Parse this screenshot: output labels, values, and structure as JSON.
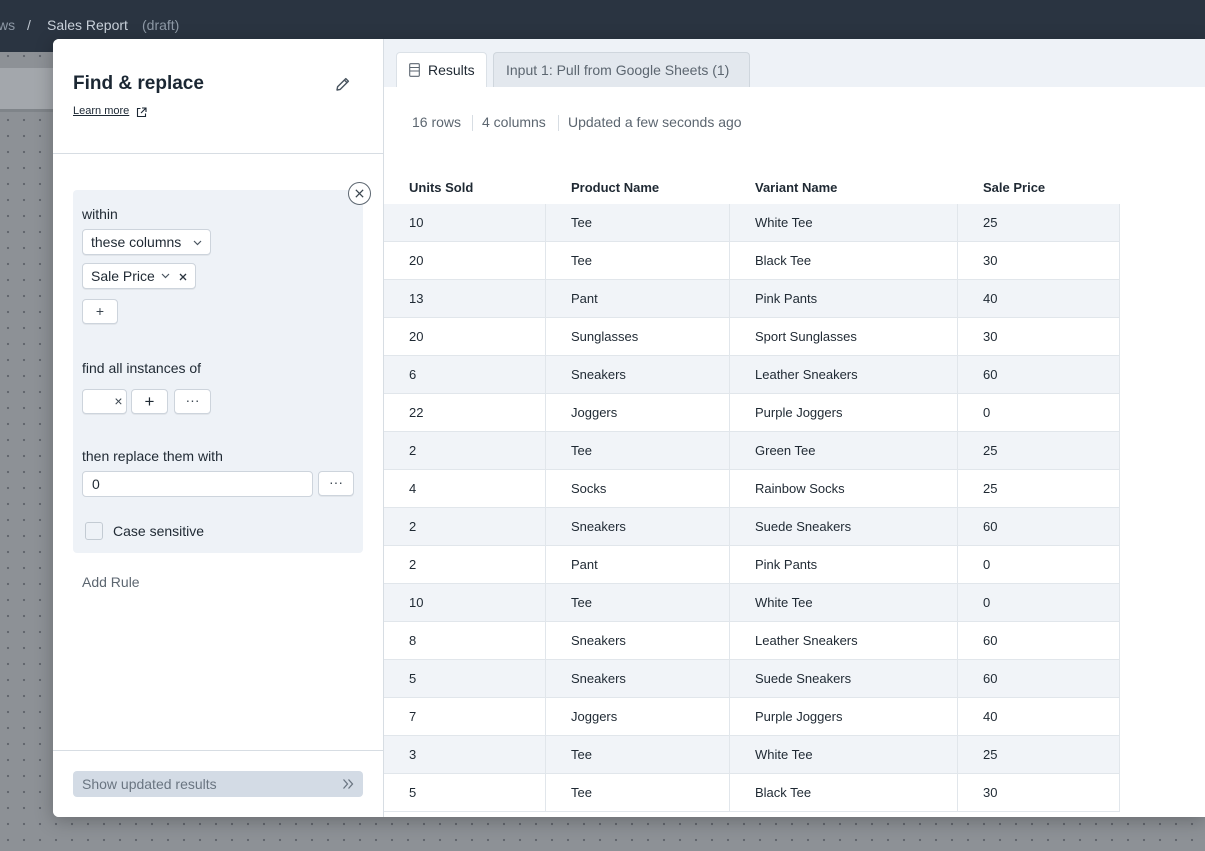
{
  "header": {
    "prev_crumb": "ws",
    "separator": "/",
    "title": "Sales Report",
    "status": "(draft)"
  },
  "panel": {
    "title": "Find & replace",
    "learn_more": "Learn more",
    "rule": {
      "within_label": "within",
      "scope_select": "these columns",
      "column_chip": "Sale Price",
      "add_column": "+",
      "find_label": "find all instances of",
      "find_clear": "×",
      "find_add": "+",
      "find_more": "···",
      "replace_label": "then replace them with",
      "replace_value": "0",
      "replace_more": "···",
      "case_sensitive_label": "Case sensitive",
      "case_sensitive_checked": false
    },
    "add_rule": "Add Rule",
    "show_results": "Show updated results"
  },
  "results": {
    "tabs": [
      "Results",
      "Input 1: Pull from Google Sheets (1)"
    ],
    "rows_count": "16 rows",
    "columns_count": "4 columns",
    "updated": "Updated a few seconds ago",
    "columns": [
      "Units Sold",
      "Product Name",
      "Variant Name",
      "Sale Price"
    ],
    "rows": [
      [
        "10",
        "Tee",
        "White Tee",
        "25"
      ],
      [
        "20",
        "Tee",
        "Black Tee",
        "30"
      ],
      [
        "13",
        "Pant",
        "Pink Pants",
        "40"
      ],
      [
        "20",
        "Sunglasses",
        "Sport Sunglasses",
        "30"
      ],
      [
        "6",
        "Sneakers",
        "Leather Sneakers",
        "60"
      ],
      [
        "22",
        "Joggers",
        "Purple Joggers",
        "0"
      ],
      [
        "2",
        "Tee",
        "Green Tee",
        "25"
      ],
      [
        "4",
        "Socks",
        "Rainbow Socks",
        "25"
      ],
      [
        "2",
        "Sneakers",
        "Suede Sneakers",
        "60"
      ],
      [
        "2",
        "Pant",
        "Pink Pants",
        "0"
      ],
      [
        "10",
        "Tee",
        "White Tee",
        "0"
      ],
      [
        "8",
        "Sneakers",
        "Leather Sneakers",
        "60"
      ],
      [
        "5",
        "Sneakers",
        "Suede Sneakers",
        "60"
      ],
      [
        "7",
        "Joggers",
        "Purple Joggers",
        "40"
      ],
      [
        "3",
        "Tee",
        "White Tee",
        "25"
      ],
      [
        "5",
        "Tee",
        "Black Tee",
        "30"
      ]
    ]
  },
  "colors": {
    "header_bg": "#2a3441",
    "rule_card_bg": "#eef2f7",
    "row_stripe": "#f1f4f8",
    "show_button_bg": "#d3dbe5"
  }
}
